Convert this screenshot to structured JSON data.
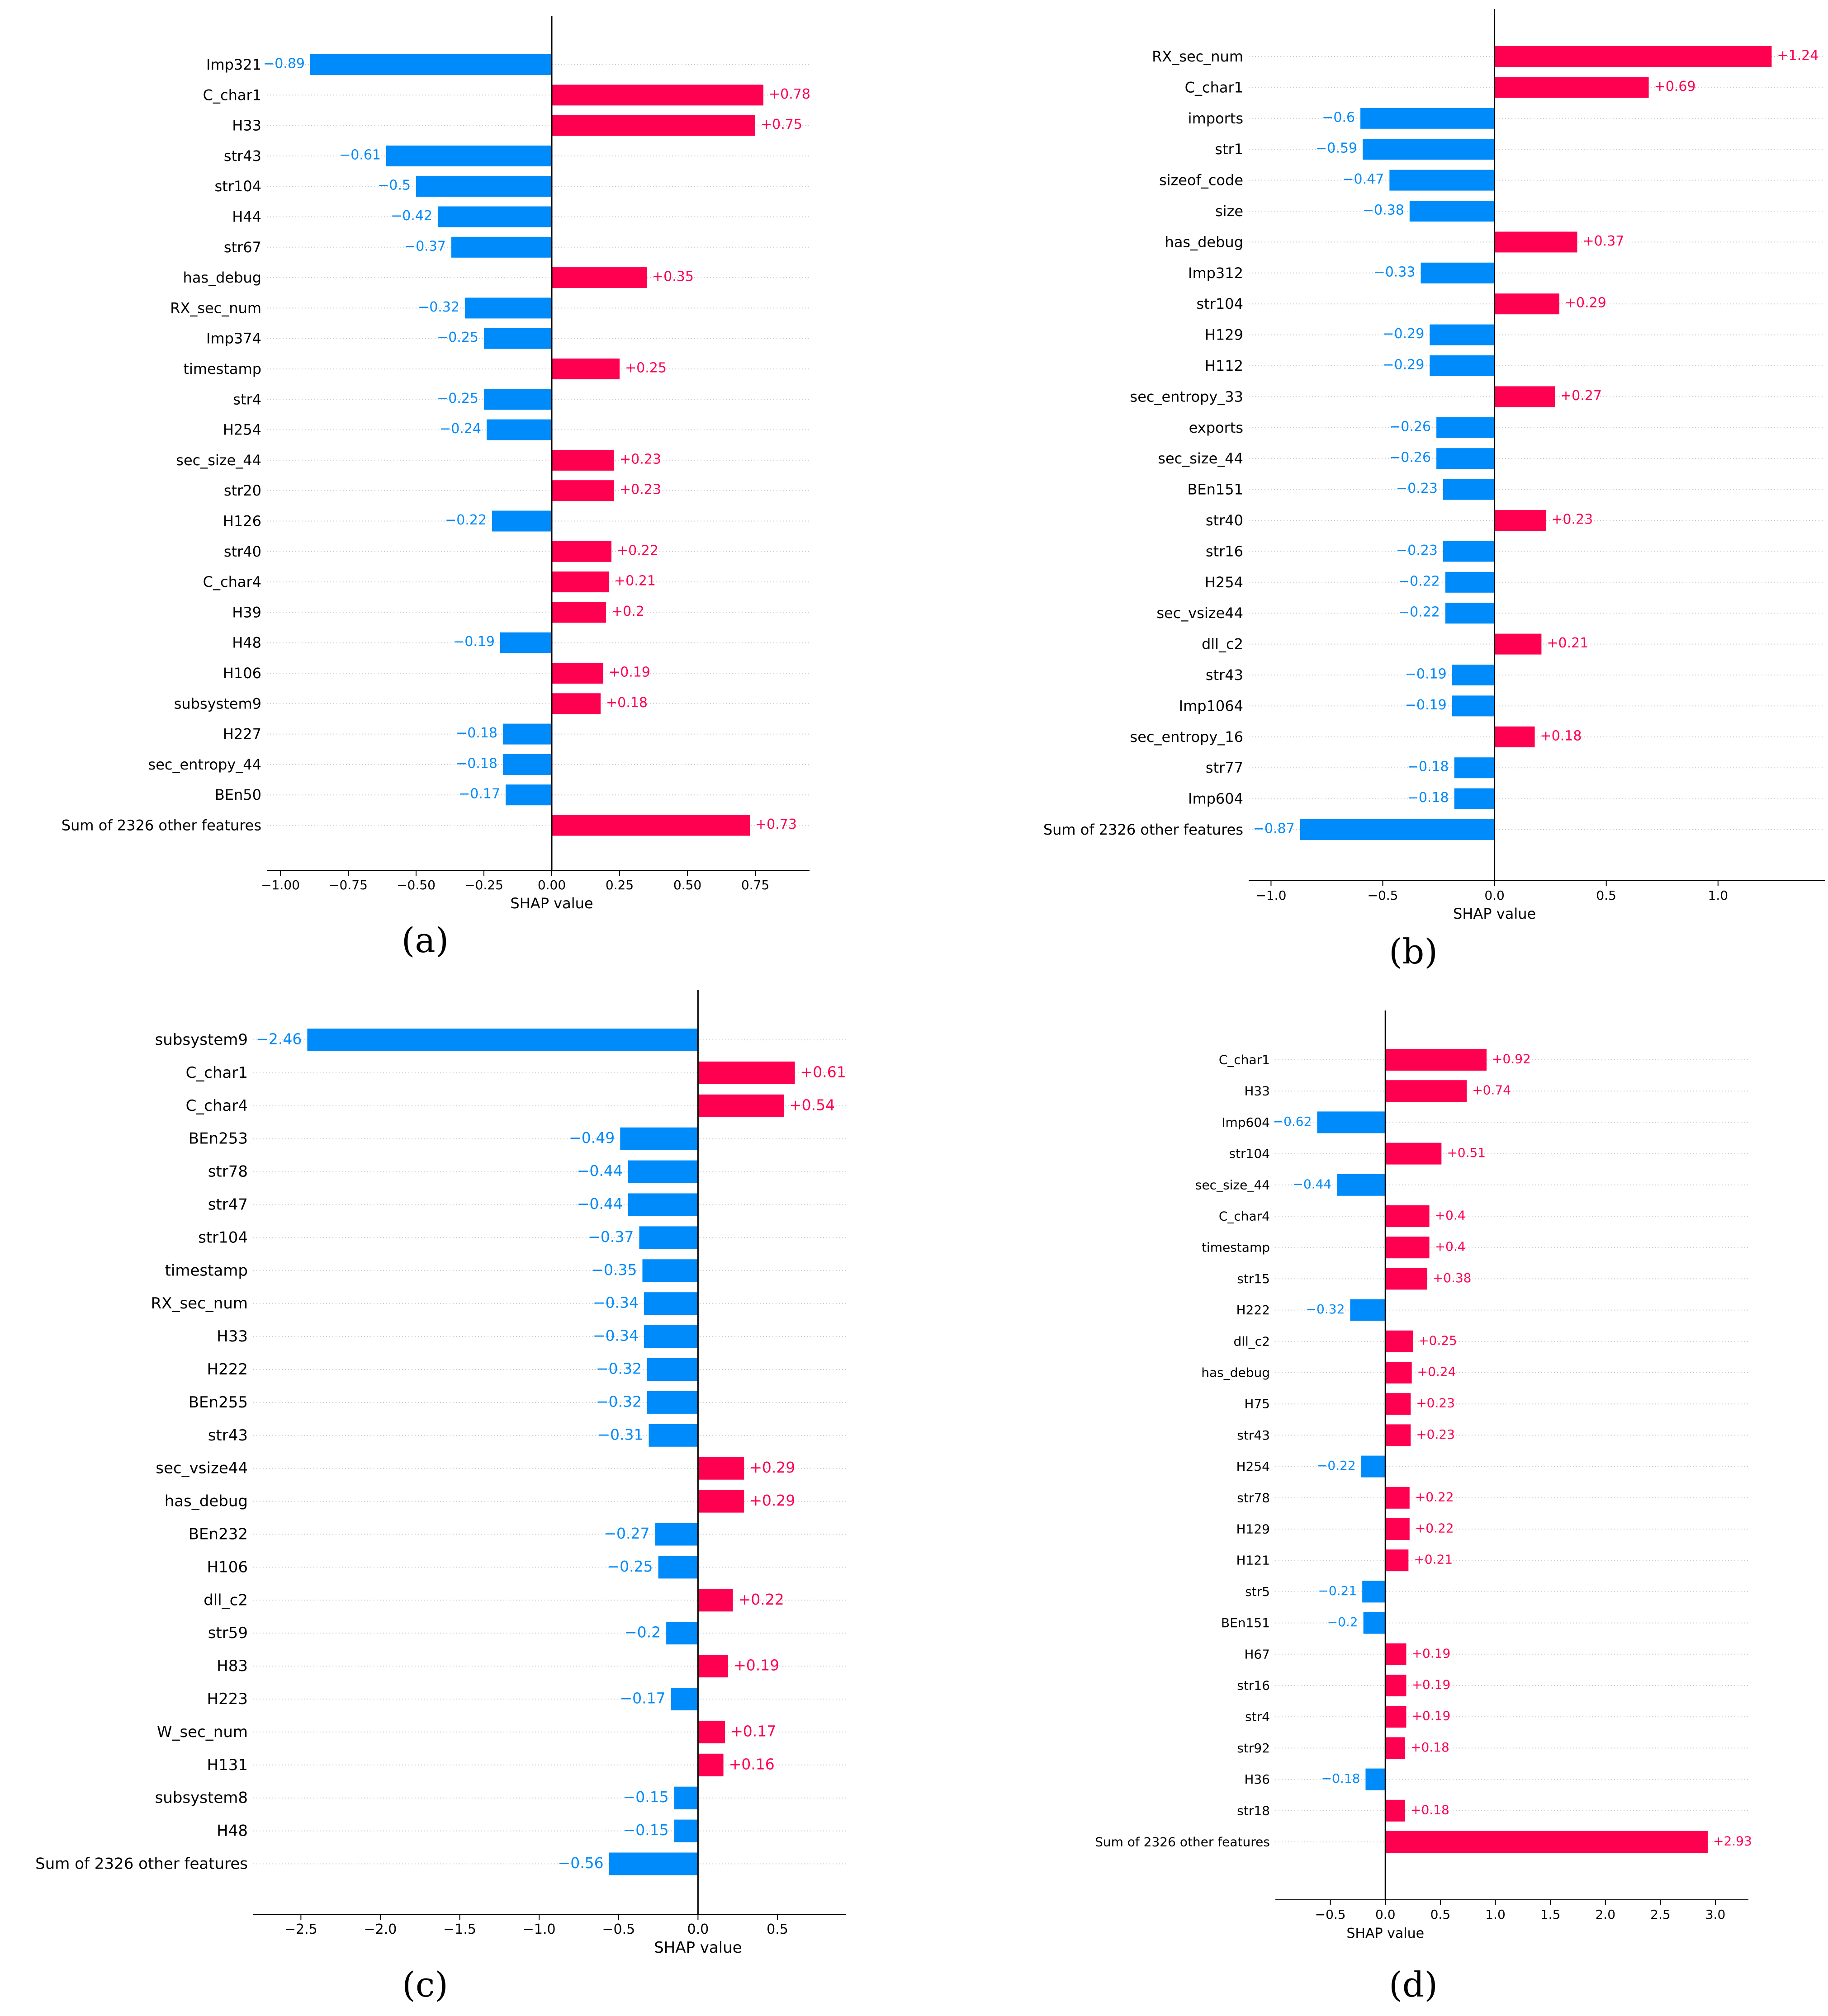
{
  "colors": {
    "positive": "#ff0051",
    "negative": "#008bfb",
    "grid": "#cccccc",
    "axis": "#000000"
  },
  "chart_data": [
    {
      "type": "bar",
      "caption": "(a)",
      "xlabel": "SHAP value",
      "xlim": [
        -1.05,
        0.95
      ],
      "ticks": [
        -1.0,
        -0.75,
        -0.5,
        -0.25,
        0.0,
        0.25,
        0.5,
        0.75
      ],
      "tick_labels": [
        "−1.00",
        "−0.75",
        "−0.50",
        "−0.25",
        "0.00",
        "0.25",
        "0.50",
        "0.75"
      ],
      "categories": [
        "Imp321",
        "C_char1",
        "H33",
        "str43",
        "str104",
        "H44",
        "str67",
        "has_debug",
        "RX_sec_num",
        "Imp374",
        "timestamp",
        "str4",
        "H254",
        "sec_size_44",
        "str20",
        "H126",
        "str40",
        "C_char4",
        "H39",
        "H48",
        "H106",
        "subsystem9",
        "H227",
        "sec_entropy_44",
        "BEn50",
        "Sum of 2326 other features"
      ],
      "values": [
        -0.89,
        0.78,
        0.75,
        -0.61,
        -0.5,
        -0.42,
        -0.37,
        0.35,
        -0.32,
        -0.25,
        0.25,
        -0.25,
        -0.24,
        0.23,
        0.23,
        -0.22,
        0.22,
        0.21,
        0.2,
        -0.19,
        0.19,
        0.18,
        -0.18,
        -0.18,
        -0.17,
        0.73
      ],
      "value_labels": [
        "−0.89",
        "+0.78",
        "+0.75",
        "−0.61",
        "−0.5",
        "−0.42",
        "−0.37",
        "+0.35",
        "−0.32",
        "−0.25",
        "+0.25",
        "−0.25",
        "−0.24",
        "+0.23",
        "+0.23",
        "−0.22",
        "+0.22",
        "+0.21",
        "+0.2",
        "−0.19",
        "+0.19",
        "+0.18",
        "−0.18",
        "−0.18",
        "−0.17",
        "+0.73"
      ]
    },
    {
      "type": "bar",
      "caption": "(b)",
      "xlabel": "SHAP value",
      "xlim": [
        -1.1,
        1.48
      ],
      "ticks": [
        -1.0,
        -0.5,
        0.0,
        0.5,
        1.0
      ],
      "tick_labels": [
        "−1.0",
        "−0.5",
        "0.0",
        "0.5",
        "1.0"
      ],
      "categories": [
        "RX_sec_num",
        "C_char1",
        "imports",
        "str1",
        "sizeof_code",
        "size",
        "has_debug",
        "Imp312",
        "str104",
        "H129",
        "H112",
        "sec_entropy_33",
        "exports",
        "sec_size_44",
        "BEn151",
        "str40",
        "str16",
        "H254",
        "sec_vsize44",
        "dll_c2",
        "str43",
        "Imp1064",
        "sec_entropy_16",
        "str77",
        "Imp604",
        "Sum of 2326 other features"
      ],
      "values": [
        1.24,
        0.69,
        -0.6,
        -0.59,
        -0.47,
        -0.38,
        0.37,
        -0.33,
        0.29,
        -0.29,
        -0.29,
        0.27,
        -0.26,
        -0.26,
        -0.23,
        0.23,
        -0.23,
        -0.22,
        -0.22,
        0.21,
        -0.19,
        -0.19,
        0.18,
        -0.18,
        -0.18,
        -0.87
      ],
      "value_labels": [
        "+1.24",
        "+0.69",
        "−0.6",
        "−0.59",
        "−0.47",
        "−0.38",
        "+0.37",
        "−0.33",
        "+0.29",
        "−0.29",
        "−0.29",
        "+0.27",
        "−0.26",
        "−0.26",
        "−0.23",
        "+0.23",
        "−0.23",
        "−0.22",
        "−0.22",
        "+0.21",
        "−0.19",
        "−0.19",
        "+0.18",
        "−0.18",
        "−0.18",
        "−0.87"
      ]
    },
    {
      "type": "bar",
      "caption": "(c)",
      "xlabel": "SHAP value",
      "xlim": [
        -2.8,
        0.93
      ],
      "ticks": [
        -2.5,
        -2.0,
        -1.5,
        -1.0,
        -0.5,
        0.0,
        0.5
      ],
      "tick_labels": [
        "−2.5",
        "−2.0",
        "−1.5",
        "−1.0",
        "−0.5",
        "0.0",
        "0.5"
      ],
      "categories": [
        "subsystem9",
        "C_char1",
        "C_char4",
        "BEn253",
        "str78",
        "str47",
        "str104",
        "timestamp",
        "RX_sec_num",
        "H33",
        "H222",
        "BEn255",
        "str43",
        "sec_vsize44",
        "has_debug",
        "BEn232",
        "H106",
        "dll_c2",
        "str59",
        "H83",
        "H223",
        "W_sec_num",
        "H131",
        "subsystem8",
        "H48",
        "Sum of 2326 other features"
      ],
      "values": [
        -2.46,
        0.61,
        0.54,
        -0.49,
        -0.44,
        -0.44,
        -0.37,
        -0.35,
        -0.34,
        -0.34,
        -0.32,
        -0.32,
        -0.31,
        0.29,
        0.29,
        -0.27,
        -0.25,
        0.22,
        -0.2,
        0.19,
        -0.17,
        0.17,
        0.16,
        -0.15,
        -0.15,
        -0.56
      ],
      "value_labels": [
        "−2.46",
        "+0.61",
        "+0.54",
        "−0.49",
        "−0.44",
        "−0.44",
        "−0.37",
        "−0.35",
        "−0.34",
        "−0.34",
        "−0.32",
        "−0.32",
        "−0.31",
        "+0.29",
        "+0.29",
        "−0.27",
        "−0.25",
        "+0.22",
        "−0.2",
        "+0.19",
        "−0.17",
        "+0.17",
        "+0.16",
        "−0.15",
        "−0.15",
        "−0.56"
      ]
    },
    {
      "type": "bar",
      "caption": "(d)",
      "xlabel": "SHAP value",
      "xlim": [
        -1.0,
        3.3
      ],
      "ticks": [
        -0.5,
        0.0,
        0.5,
        1.0,
        1.5,
        2.0,
        2.5,
        3.0
      ],
      "tick_labels": [
        "−0.5",
        "0.0",
        "0.5",
        "1.0",
        "1.5",
        "2.0",
        "2.5",
        "3.0"
      ],
      "categories": [
        "C_char1",
        "H33",
        "Imp604",
        "str104",
        "sec_size_44",
        "C_char4",
        "timestamp",
        "str15",
        "H222",
        "dll_c2",
        "has_debug",
        "H75",
        "str43",
        "H254",
        "str78",
        "H129",
        "H121",
        "str5",
        "BEn151",
        "H67",
        "str16",
        "str4",
        "str92",
        "H36",
        "str18",
        "Sum of 2326 other features"
      ],
      "values": [
        0.92,
        0.74,
        -0.62,
        0.51,
        -0.44,
        0.4,
        0.4,
        0.38,
        -0.32,
        0.25,
        0.24,
        0.23,
        0.23,
        -0.22,
        0.22,
        0.22,
        0.21,
        -0.21,
        -0.2,
        0.19,
        0.19,
        0.19,
        0.18,
        -0.18,
        0.18,
        2.93
      ],
      "value_labels": [
        "+0.92",
        "+0.74",
        "−0.62",
        "+0.51",
        "−0.44",
        "+0.4",
        "+0.4",
        "+0.38",
        "−0.32",
        "+0.25",
        "+0.24",
        "+0.23",
        "+0.23",
        "−0.22",
        "+0.22",
        "+0.22",
        "+0.21",
        "−0.21",
        "−0.2",
        "+0.19",
        "+0.19",
        "+0.19",
        "+0.18",
        "−0.18",
        "+0.18",
        "+2.93"
      ]
    }
  ]
}
